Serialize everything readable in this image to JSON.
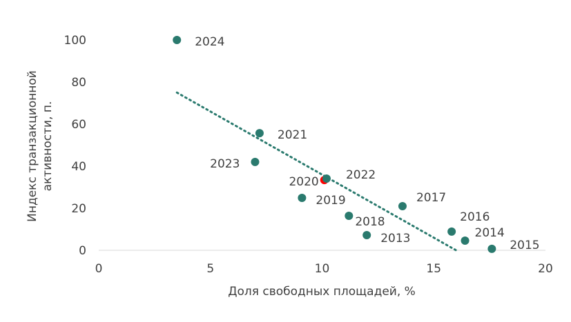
{
  "chart_data": {
    "type": "scatter",
    "title": "",
    "xlabel": "Доля свободных площадей, %",
    "ylabel_lines": [
      "Индекс транзакционной",
      "активности, п."
    ],
    "xlim": [
      0,
      20
    ],
    "ylim": [
      0,
      100
    ],
    "xticks": [
      "0",
      "5",
      "10",
      "15",
      "20"
    ],
    "yticks": [
      "0",
      "20",
      "40",
      "60",
      "80",
      "100"
    ],
    "grid": false,
    "colors": {
      "point": "#2a7a6e",
      "highlight": "#ff0000",
      "trend": "#2a7a6e"
    },
    "points": [
      {
        "label": "2024",
        "x": 3.5,
        "y": 100,
        "highlight": false
      },
      {
        "label": "2021",
        "x": 7.2,
        "y": 55.7,
        "highlight": false
      },
      {
        "label": "2023",
        "x": 7.0,
        "y": 42,
        "highlight": false
      },
      {
        "label": "2022",
        "x": 10.2,
        "y": 34.1,
        "highlight": false
      },
      {
        "label": "2020",
        "x": 10.1,
        "y": 33.4,
        "highlight": true
      },
      {
        "label": "2019",
        "x": 9.1,
        "y": 24.9,
        "highlight": false
      },
      {
        "label": "2018",
        "x": 11.2,
        "y": 16.4,
        "highlight": false
      },
      {
        "label": "2013",
        "x": 12.0,
        "y": 7.2,
        "highlight": false
      },
      {
        "label": "2017",
        "x": 13.6,
        "y": 21,
        "highlight": false
      },
      {
        "label": "2016",
        "x": 15.8,
        "y": 8.9,
        "highlight": false
      },
      {
        "label": "2014",
        "x": 16.4,
        "y": 4.6,
        "highlight": false
      },
      {
        "label": "2015",
        "x": 17.6,
        "y": 0.7,
        "highlight": false
      }
    ],
    "trendline": {
      "type": "linear",
      "from": [
        3.5,
        75
      ],
      "to": [
        16,
        0
      ]
    }
  }
}
